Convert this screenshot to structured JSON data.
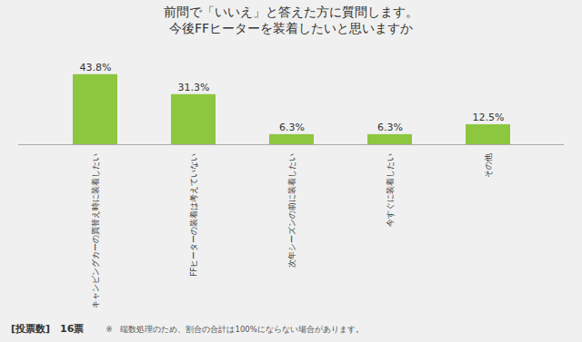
{
  "chart_data": {
    "type": "bar",
    "title": "前問で「いいえ」と答えた方に質問します。",
    "subtitle": "今後FFヒーターを装着したいと思いますか",
    "categories": [
      "キャンピングカーの買替え時に装着したい",
      "FFヒーターの装着は考えていない",
      "次年シーズンの前に装着したい",
      "今すぐに装着したい",
      "その他"
    ],
    "values": [
      43.8,
      31.3,
      6.3,
      6.3,
      12.5
    ],
    "value_labels": [
      "43.8%",
      "31.3%",
      "6.3%",
      "6.3%",
      "12.5%"
    ],
    "data_labels": true,
    "color": "#8dc63f",
    "ylim": [
      0,
      55
    ],
    "tick_labels": "x",
    "grid": false,
    "annotations": [
      "[投票数]　16票",
      "※　端数処理のため、割合の合計は100%にならない場合があります。"
    ]
  }
}
